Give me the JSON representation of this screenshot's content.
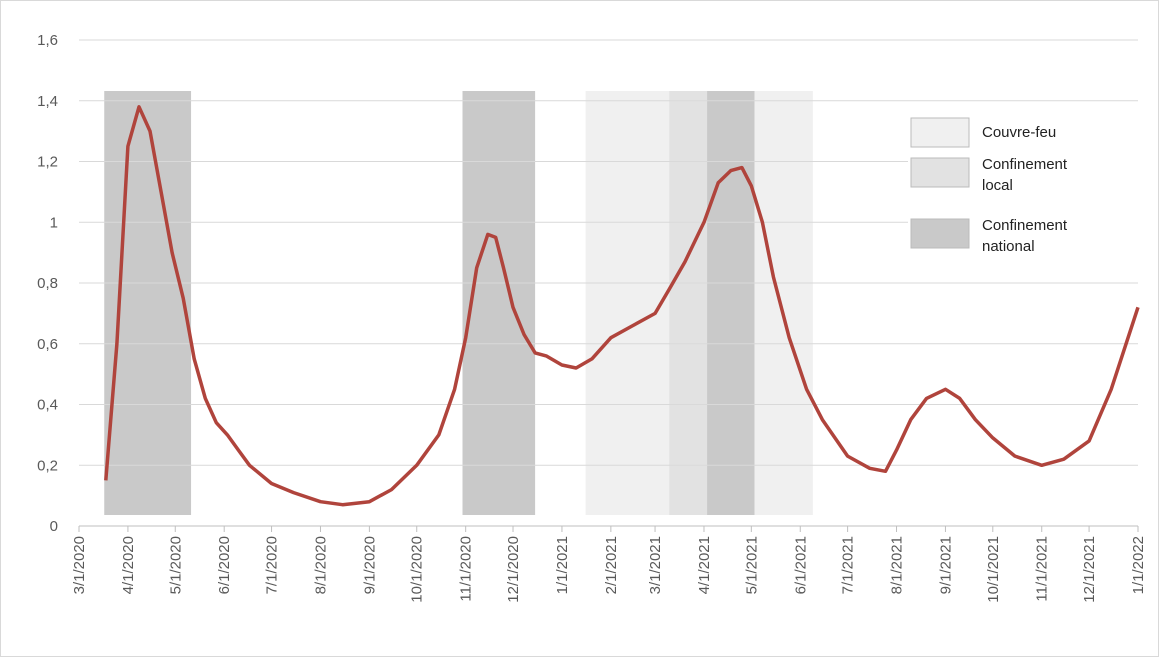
{
  "chart_data": {
    "type": "line",
    "xlim": [
      "3/1/2020",
      "1/1/2022"
    ],
    "xticks": [
      "3/1/2020",
      "4/1/2020",
      "5/1/2020",
      "6/1/2020",
      "7/1/2020",
      "8/1/2020",
      "9/1/2020",
      "10/1/2020",
      "11/1/2020",
      "12/1/2020",
      "1/1/2021",
      "2/1/2021",
      "3/1/2021",
      "4/1/2021",
      "5/1/2021",
      "6/1/2021",
      "7/1/2021",
      "8/1/2021",
      "9/1/2021",
      "10/1/2021",
      "11/1/2021",
      "12/1/2021",
      "1/1/2022"
    ],
    "ylim": [
      0,
      1.6
    ],
    "yticks": [
      {
        "value": 0,
        "label": "0"
      },
      {
        "value": 0.2,
        "label": "0,2"
      },
      {
        "value": 0.4,
        "label": "0,4"
      },
      {
        "value": 0.6,
        "label": "0,6"
      },
      {
        "value": 0.8,
        "label": "0,8"
      },
      {
        "value": 1,
        "label": "1"
      },
      {
        "value": 1.2,
        "label": "1,2"
      },
      {
        "value": 1.4,
        "label": "1,4"
      },
      {
        "value": 1.6,
        "label": "1,6"
      }
    ],
    "grid": true,
    "bands": [
      {
        "name": "Couvre-feu",
        "color": "#f0f0f0",
        "ranges": [
          [
            "1/16/2021",
            "6/9/2021"
          ]
        ]
      },
      {
        "name": "Confinement local",
        "color": "#e2e2e2",
        "ranges": [
          [
            "3/10/2021",
            "5/3/2021"
          ]
        ]
      },
      {
        "name": "Confinement national",
        "color": "#c9c9c9",
        "ranges": [
          [
            "3/17/2020",
            "5/11/2020"
          ],
          [
            "10/30/2020",
            "12/15/2020"
          ],
          [
            "4/3/2021",
            "5/3/2021"
          ]
        ]
      }
    ],
    "color": "#b0443c",
    "x": [
      "3/18/2020",
      "3/25/2020",
      "4/1/2020",
      "4/8/2020",
      "4/15/2020",
      "4/22/2020",
      "4/29/2020",
      "5/6/2020",
      "5/13/2020",
      "5/20/2020",
      "5/27/2020",
      "6/3/2020",
      "6/10/2020",
      "6/17/2020",
      "7/1/2020",
      "7/15/2020",
      "8/1/2020",
      "8/15/2020",
      "9/1/2020",
      "9/15/2020",
      "10/1/2020",
      "10/15/2020",
      "10/25/2020",
      "11/1/2020",
      "11/8/2020",
      "11/15/2020",
      "11/20/2020",
      "11/25/2020",
      "12/1/2020",
      "12/8/2020",
      "12/15/2020",
      "12/22/2020",
      "1/1/2021",
      "1/10/2021",
      "1/20/2021",
      "2/1/2021",
      "2/15/2021",
      "3/1/2021",
      "3/10/2021",
      "3/20/2021",
      "4/1/2021",
      "4/10/2021",
      "4/18/2021",
      "4/25/2021",
      "5/1/2021",
      "5/8/2021",
      "5/15/2021",
      "5/25/2021",
      "6/5/2021",
      "6/15/2021",
      "7/1/2021",
      "7/15/2021",
      "7/25/2021",
      "8/1/2021",
      "8/10/2021",
      "8/20/2021",
      "9/1/2021",
      "9/10/2021",
      "9/20/2021",
      "10/1/2021",
      "10/15/2021",
      "11/1/2021",
      "11/15/2021",
      "12/1/2021",
      "12/15/2021",
      "1/1/2022"
    ],
    "values": [
      0.15,
      0.6,
      1.25,
      1.38,
      1.3,
      1.1,
      0.9,
      0.75,
      0.55,
      0.42,
      0.34,
      0.3,
      0.25,
      0.2,
      0.14,
      0.11,
      0.08,
      0.07,
      0.08,
      0.12,
      0.2,
      0.3,
      0.45,
      0.62,
      0.85,
      0.96,
      0.95,
      0.85,
      0.72,
      0.63,
      0.57,
      0.56,
      0.53,
      0.52,
      0.55,
      0.62,
      0.66,
      0.7,
      0.78,
      0.87,
      1.0,
      1.13,
      1.17,
      1.18,
      1.12,
      1.0,
      0.82,
      0.62,
      0.45,
      0.35,
      0.23,
      0.19,
      0.18,
      0.25,
      0.35,
      0.42,
      0.45,
      0.42,
      0.35,
      0.29,
      0.23,
      0.2,
      0.22,
      0.28,
      0.45,
      0.72
    ]
  }
}
